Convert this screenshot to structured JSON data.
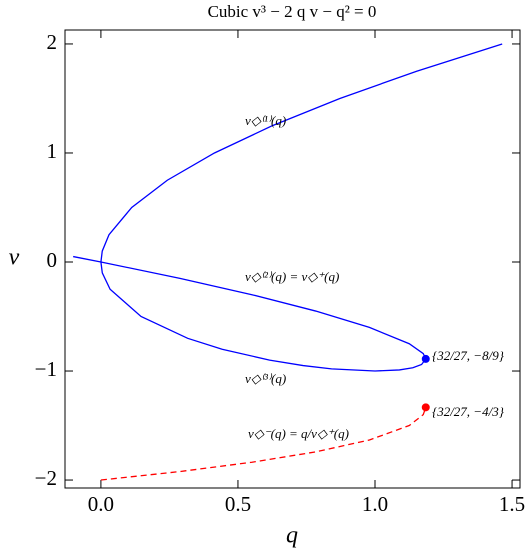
{
  "chart_data": {
    "type": "line",
    "title": "Cubic  v³ − 2 q v − q² = 0",
    "x_label": "q",
    "y_label": "v",
    "xlim": [
      -0.131,
      1.529
    ],
    "ylim": [
      -2.073,
      2.128
    ],
    "xticks": [
      {
        "value": 0,
        "label": "0.0"
      },
      {
        "value": 0.5,
        "label": "0.5"
      },
      {
        "value": 1,
        "label": "1.0"
      },
      {
        "value": 1.5,
        "label": "1.5"
      }
    ],
    "yticks": [
      {
        "value": -2,
        "label": "−2"
      },
      {
        "value": -1,
        "label": "−1"
      },
      0,
      1,
      2
    ],
    "series": [
      {
        "color": "#0000ff",
        "dashed": false,
        "x": [
          1.464,
          1.152,
          0.8717,
          0.625,
          0.4142,
          0.2422,
          0.1124,
          0.0295,
          0.0049,
          0,
          0.0051,
          0.0335,
          0.1464,
          0.3166,
          0.4422,
          0.6154,
          0.7376,
          0.8414,
          1,
          1.089,
          1.138,
          1.17,
          1.1852,
          1.176,
          1.125,
          0.9795,
          0.7837,
          0.551,
          0.2883,
          0,
          -0.1012
        ],
        "values": [
          2,
          1.75,
          1.5,
          1.25,
          1,
          0.75,
          0.5,
          0.25,
          0.1,
          0,
          -0.1,
          -0.25,
          -0.5,
          -0.7,
          -0.8,
          -0.9,
          -0.95,
          -0.98,
          -1,
          -0.99,
          -0.97,
          -0.94,
          -0.889,
          -0.84,
          -0.75,
          -0.6,
          -0.45,
          -0.3,
          -0.15,
          0,
          0.05
        ]
      },
      {
        "color": "#ff0000",
        "dashed": true,
        "x": [
          0,
          0.2883,
          0.551,
          0.7837,
          0.9795,
          1.125,
          1.176,
          1.1852
        ],
        "values": [
          -2,
          -1.922,
          -1.8367,
          -1.7416,
          -1.6325,
          -1.5,
          -1.4,
          -1.3333
        ]
      }
    ],
    "points": [
      {
        "x": 1.1852,
        "y": -0.8889,
        "color": "#0000ff"
      },
      {
        "x": 1.1852,
        "y": -1.3333,
        "color": "#ff0000"
      }
    ],
    "annotations": [
      "v◇⁽¹⁾(q)",
      "v◇⁽²⁾(q) = v◇⁺(q)",
      "v◇⁽³⁾(q)",
      "v◇⁻(q) = q/v◇⁺(q)",
      "{32/27, −8/9}",
      "{32/27, −4/3}"
    ]
  }
}
